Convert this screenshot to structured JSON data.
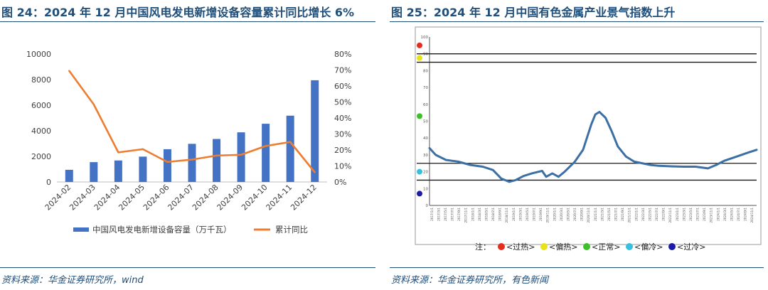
{
  "left": {
    "title": "图 24：2024 年 12 月中国风电发电新增设备容量累计同比增长 6%",
    "source": "资料来源：华金证券研究所，wind"
  },
  "right": {
    "title": "图 25：2024 年 12 月中国有色金属产业景气指数上升",
    "source": "资料来源：华金证券研究所，有色新闻"
  },
  "chart_data": [
    {
      "type": "bar+line",
      "title": "",
      "categories": [
        "2024-02",
        "2024-03",
        "2024-04",
        "2024-05",
        "2024-06",
        "2024-07",
        "2024-08",
        "2024-09",
        "2024-10",
        "2024-11",
        "2024-12"
      ],
      "series": [
        {
          "name": "中国风电发电新增设备容量（万千瓦）",
          "type": "bar",
          "axis": "left",
          "color": "#4472c4",
          "values": [
            950,
            1550,
            1680,
            1980,
            2560,
            2980,
            3360,
            3880,
            4550,
            5180,
            7950
          ]
        },
        {
          "name": "累计同比",
          "type": "line",
          "axis": "right",
          "color": "#ed7d31",
          "values": [
            69.5,
            48.5,
            18.5,
            20.5,
            12.5,
            14.0,
            16.5,
            17.0,
            22.5,
            25.0,
            6.0
          ]
        }
      ],
      "y_left": {
        "range": [
          0,
          10000
        ],
        "ticks": [
          "0",
          "2000",
          "4000",
          "6000",
          "8000",
          "10000"
        ]
      },
      "y_right": {
        "range": [
          0,
          80
        ],
        "ticks": [
          "0%",
          "10%",
          "20%",
          "30%",
          "40%",
          "50%",
          "60%",
          "70%",
          "80%"
        ]
      },
      "grid": false,
      "legend_position": "bottom"
    },
    {
      "type": "line",
      "title": "",
      "x_range": [
        2017.0,
        2024.99
      ],
      "x": [
        2017.0,
        2017.15,
        2017.4,
        2017.7,
        2018.0,
        2018.3,
        2018.55,
        2018.75,
        2018.95,
        2019.1,
        2019.3,
        2019.5,
        2019.75,
        2019.85,
        2020.0,
        2020.15,
        2020.3,
        2020.55,
        2020.75,
        2020.95,
        2021.05,
        2021.15,
        2021.3,
        2021.45,
        2021.6,
        2021.8,
        2022.0,
        2022.2,
        2022.4,
        2022.6,
        2022.9,
        2023.2,
        2023.5,
        2023.8,
        2024.0,
        2024.2,
        2024.5,
        2024.8,
        2024.99
      ],
      "y": [
        34,
        30,
        27,
        26,
        24,
        23,
        21,
        16,
        14,
        15,
        17.5,
        19,
        20.5,
        17,
        19,
        17,
        20,
        26,
        33,
        48,
        54,
        55.5,
        52,
        44,
        35,
        29,
        26,
        25,
        24,
        23.5,
        23.2,
        23,
        23,
        22,
        24,
        26.5,
        29,
        31.5,
        33
      ],
      "line_color": "#3c6fa4",
      "y_range": [
        0,
        100
      ],
      "y_ticks": [
        "0",
        "10",
        "20",
        "30",
        "40",
        "50",
        "60",
        "70",
        "80",
        "90",
        "100"
      ],
      "x_tick_labels": [
        "2017/1/1",
        "2017/3/1",
        "2017/5/1",
        "2017/7/1",
        "2017/9/1",
        "2017/11/1",
        "2018/1/1",
        "2018/3/1",
        "2018/5/1",
        "2018/7/1",
        "2018/9/1",
        "2018/11/1",
        "2019/1/1",
        "2019/3/1",
        "2019/5/1",
        "2019/7/1",
        "2019/9/1",
        "2019/11/1",
        "2020/1/1",
        "2020/3/1",
        "2020/5/1",
        "2020/7/1",
        "2020/9/1",
        "2020/11/1",
        "2021/1/1",
        "2021/3/1",
        "2021/5/1",
        "2021/7/1",
        "2021/9/1",
        "2021/11/1",
        "2022/1/1",
        "2022/3/1",
        "2022/5/1",
        "2022/7/1",
        "2022/9/1",
        "2022/11/1",
        "2023/1/1",
        "2023/3/1",
        "2023/5/1",
        "2023/7/1",
        "2023/9/1",
        "2023/11/1",
        "2024/1/1",
        "2024/3/1",
        "2024/5/1",
        "2024/7/1",
        "2024/9/1",
        "2024/11/1"
      ],
      "threshold_lines": [
        15,
        25,
        85,
        90
      ],
      "zone_dots": [
        {
          "value": 95,
          "color": "#e52d1f"
        },
        {
          "value": 87.5,
          "color": "#e8e21b"
        },
        {
          "value": 53,
          "color": "#3fbf2a"
        },
        {
          "value": 20,
          "color": "#37c0de"
        },
        {
          "value": 7,
          "color": "#1c1ca8"
        }
      ],
      "note_label": "注：",
      "legend": [
        {
          "label": "<过热>",
          "color": "#e52d1f"
        },
        {
          "label": "<偏热>",
          "color": "#e8e21b"
        },
        {
          "label": "<正常>",
          "color": "#3fbf2a"
        },
        {
          "label": "<偏冷>",
          "color": "#37c0de"
        },
        {
          "label": "<过冷>",
          "color": "#1c1ca8"
        }
      ],
      "legend_position": "bottom"
    }
  ]
}
